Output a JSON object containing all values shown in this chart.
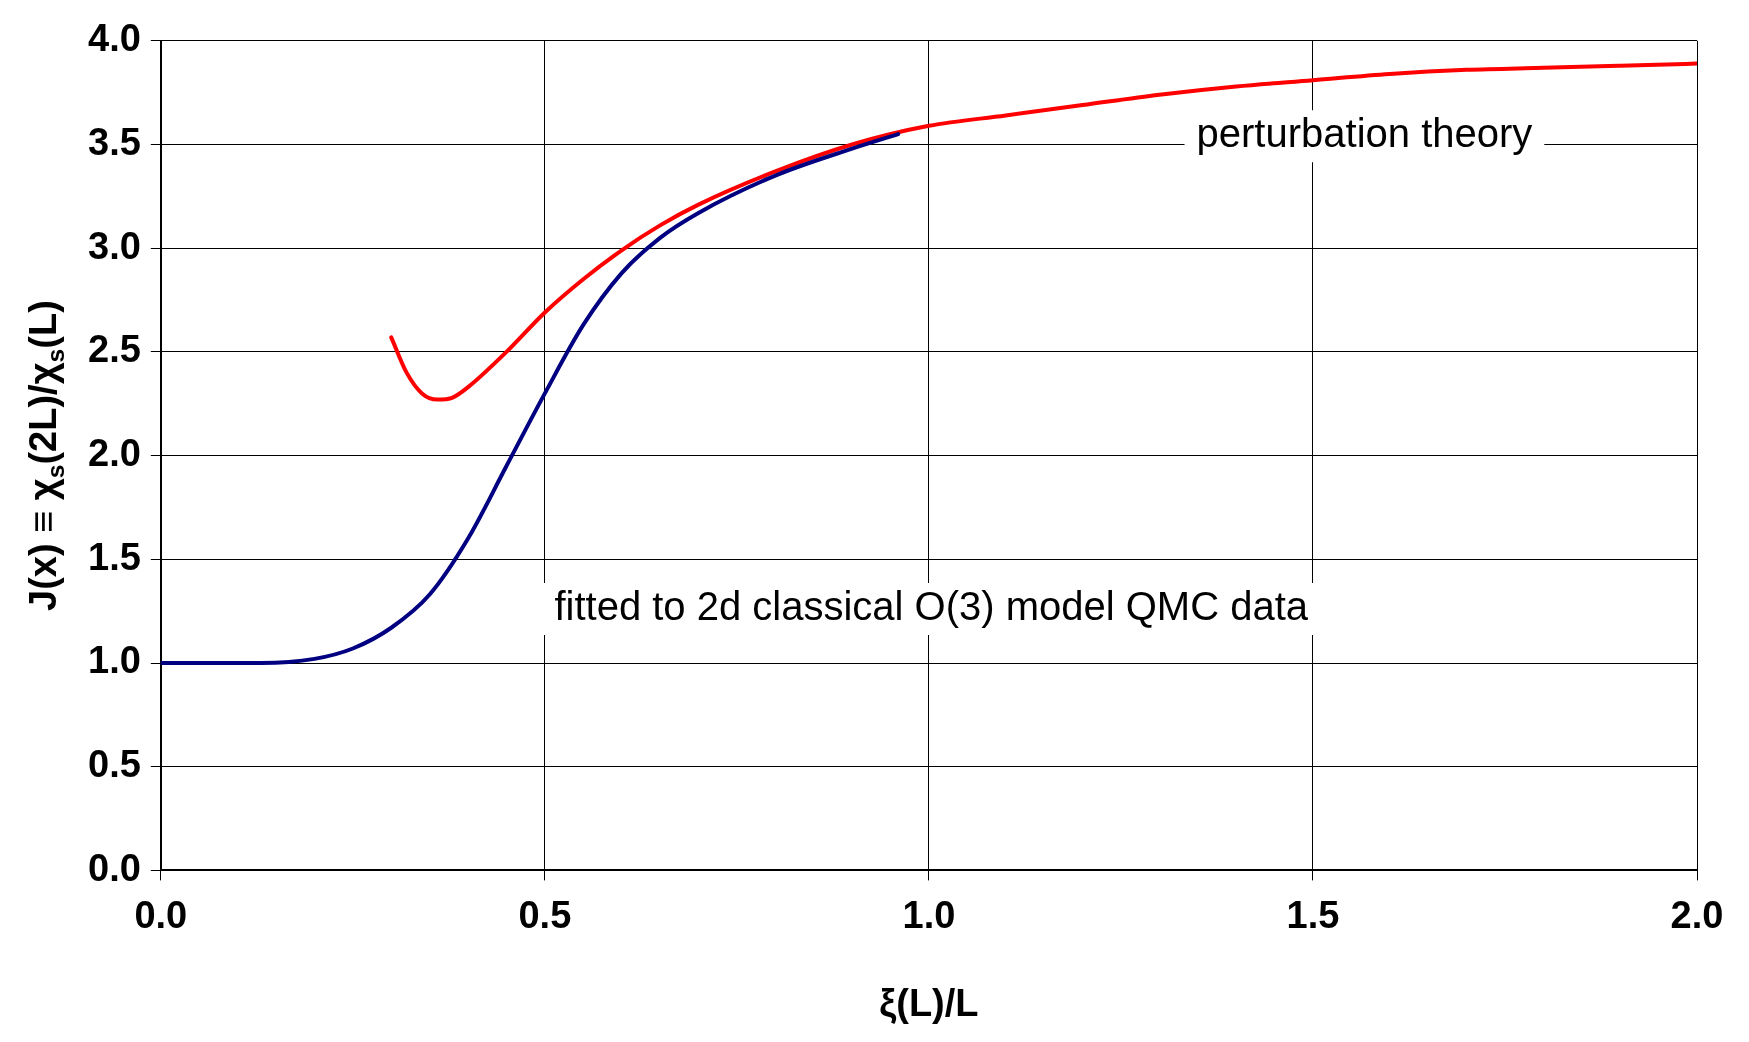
{
  "chart_data": {
    "type": "line",
    "xlabel": "ξ(L)/L",
    "ylabel": "J(x) ≡ χ$_{s}$(2L)/χ$_{s}$(L)",
    "xlim": [
      0,
      2
    ],
    "xticks": [
      {
        "value": 0,
        "label": "0.0"
      },
      {
        "value": 0.5,
        "label": "0.5"
      },
      {
        "value": 1,
        "label": "1.0"
      },
      {
        "value": 1.5,
        "label": "1.5"
      },
      {
        "value": 2,
        "label": "2.0"
      }
    ],
    "ylim": [
      0,
      4
    ],
    "yticks": [
      {
        "value": 0,
        "label": "0.0"
      },
      {
        "value": 0.5,
        "label": "0.5"
      },
      {
        "value": 1,
        "label": "1.0"
      },
      {
        "value": 1.5,
        "label": "1.5"
      },
      {
        "value": 2,
        "label": "2.0"
      },
      {
        "value": 2.5,
        "label": "2.5"
      },
      {
        "value": 3,
        "label": "3.0"
      },
      {
        "value": 3.5,
        "label": "3.5"
      },
      {
        "value": 4,
        "label": "4.0"
      }
    ],
    "grid": true,
    "legend": false,
    "marker": "none",
    "line_style": "solid",
    "annotations": [
      "perturbation theory",
      "fitted to 2d classical O(3) model QMC data"
    ],
    "series": [
      {
        "color": "#000080",
        "x": [
          0,
          0.13,
          0.2,
          0.25,
          0.3,
          0.35,
          0.4,
          0.45,
          0.5,
          0.55,
          0.6,
          0.65,
          0.7,
          0.8,
          0.9,
          0.96
        ],
        "values": [
          1,
          1,
          1.02,
          1.07,
          1.17,
          1.33,
          1.6,
          1.95,
          2.3,
          2.63,
          2.88,
          3.05,
          3.17,
          3.35,
          3.48,
          3.55
        ]
      },
      {
        "color": "#ff0000",
        "x": [
          0.3,
          0.32,
          0.34,
          0.36,
          0.38,
          0.4,
          0.45,
          0.5,
          0.55,
          0.6,
          0.65,
          0.7,
          0.8,
          0.9,
          1.0,
          1.1,
          1.2,
          1.3,
          1.4,
          1.5,
          1.6,
          1.7,
          1.8,
          1.9,
          2.0
        ],
        "values": [
          2.57,
          2.4,
          2.3,
          2.27,
          2.28,
          2.33,
          2.5,
          2.69,
          2.85,
          2.99,
          3.11,
          3.21,
          3.37,
          3.5,
          3.59,
          3.64,
          3.69,
          3.74,
          3.78,
          3.81,
          3.84,
          3.86,
          3.87,
          3.88,
          3.89
        ]
      }
    ]
  }
}
